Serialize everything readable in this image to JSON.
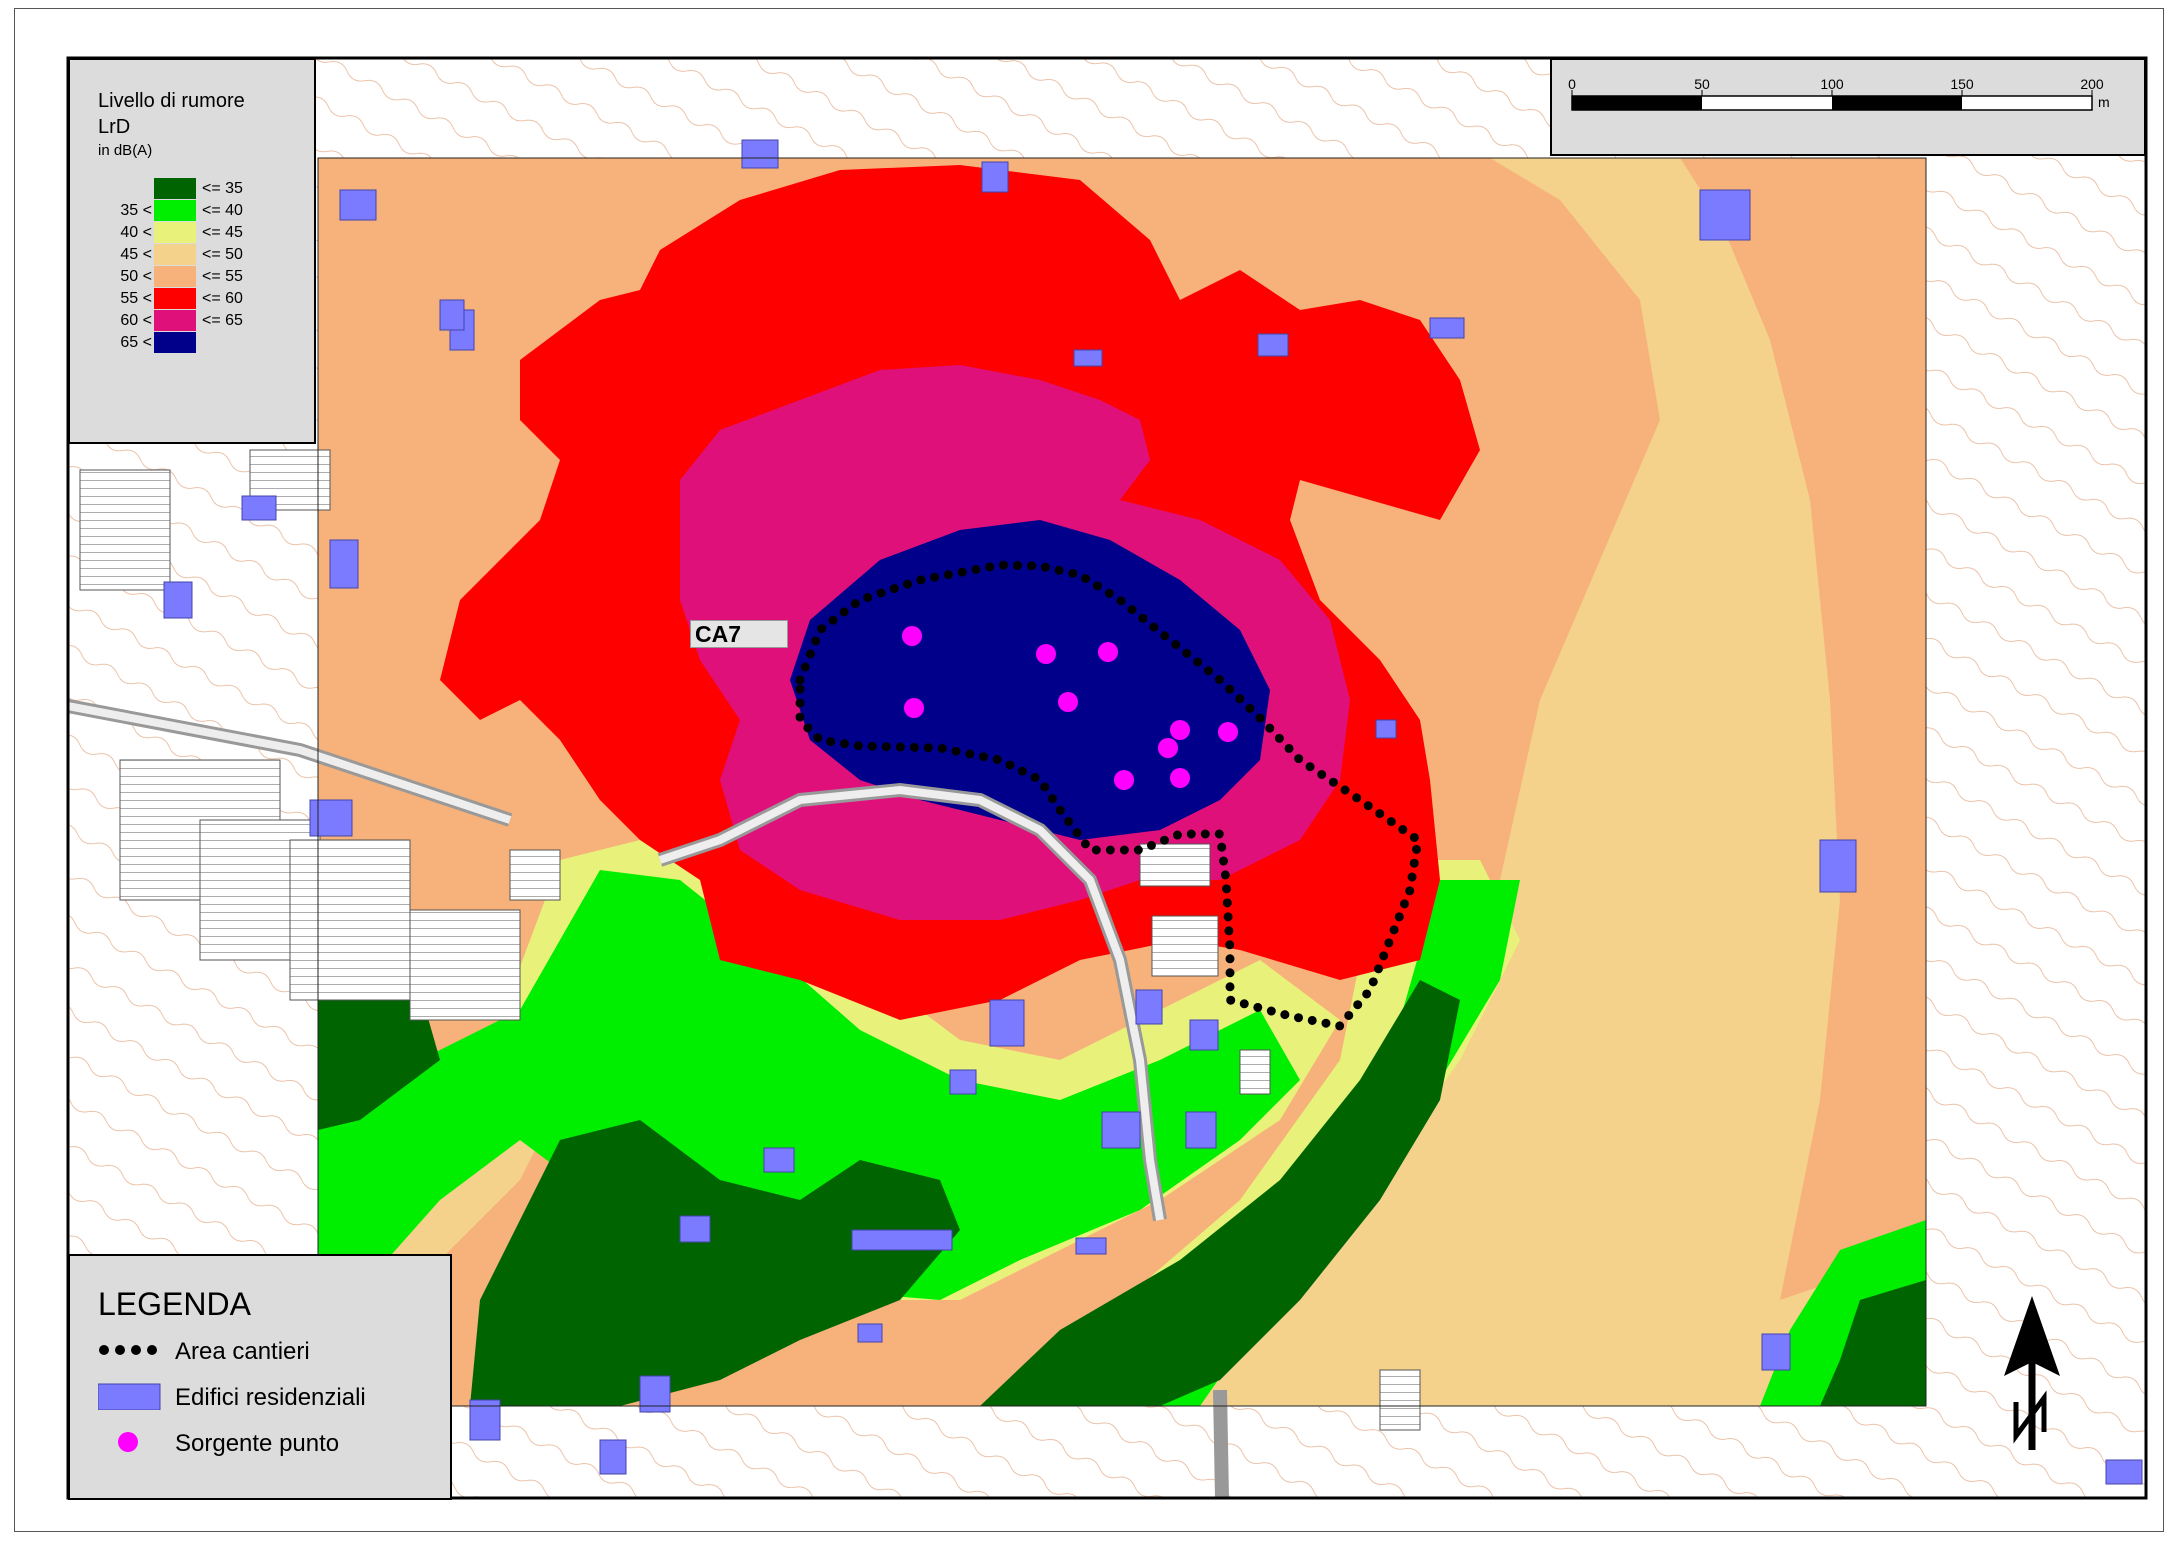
{
  "noise_legend": {
    "title": "Livello di rumore",
    "subtitle": "LrD",
    "unit": "in dB(A)",
    "classes": [
      {
        "low": "",
        "high": "<= 35",
        "color": "#006400"
      },
      {
        "low": "35 <",
        "high": "<= 40",
        "color": "#00ee00"
      },
      {
        "low": "40 <",
        "high": "<= 45",
        "color": "#e8f27a"
      },
      {
        "low": "45 <",
        "high": "<= 50",
        "color": "#f4d28c"
      },
      {
        "low": "50 <",
        "high": "<= 55",
        "color": "#f6b27a"
      },
      {
        "low": "55 <",
        "high": "<= 60",
        "color": "#ff0000"
      },
      {
        "low": "60 <",
        "high": "<= 65",
        "color": "#e0107a"
      },
      {
        "low": "65 <",
        "high": "",
        "color": "#00008b"
      }
    ]
  },
  "scale_bar": {
    "ticks": [
      "0",
      "50",
      "100",
      "150",
      "200"
    ],
    "unit": "m"
  },
  "site_label": "CA7",
  "map_legend": {
    "title": "LEGENDA",
    "items": [
      {
        "label": "Area cantieri",
        "icon": "dotted-line-icon"
      },
      {
        "label": "Edifici residenziali",
        "icon": "building-icon",
        "color": "#7b7bff"
      },
      {
        "label": "Sorgente punto",
        "icon": "point-source-icon",
        "color": "#ff00ff"
      }
    ]
  },
  "north_arrow": {
    "label": "N"
  }
}
